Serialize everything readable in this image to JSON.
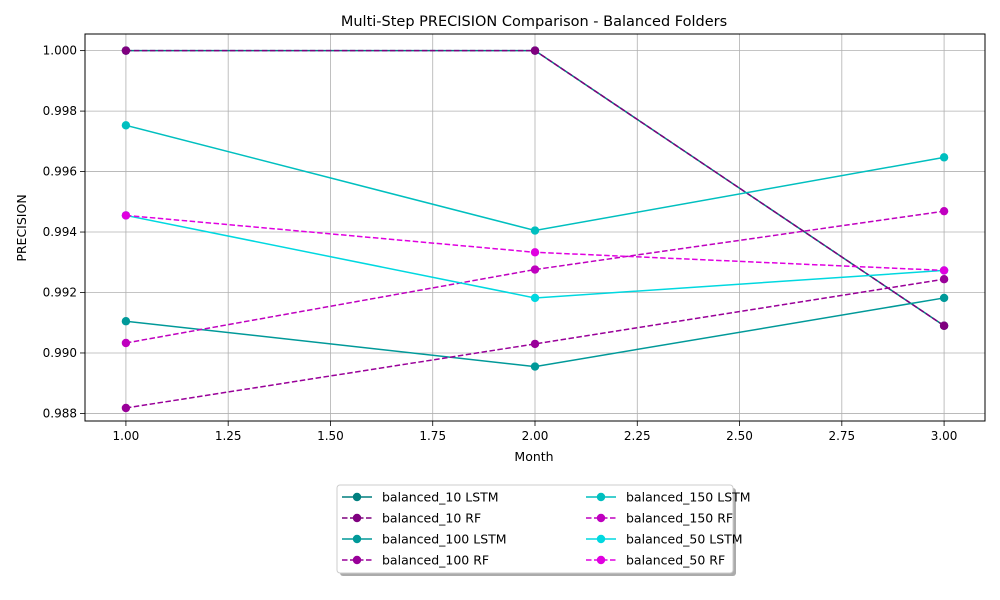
{
  "chart_data": {
    "type": "line",
    "title": "Multi-Step PRECISION Comparison - Balanced Folders",
    "xlabel": "Month",
    "ylabel": "PRECISION",
    "xlim": [
      0.9,
      3.1
    ],
    "ylim": [
      0.98775,
      1.00055
    ],
    "xticks": [
      1.0,
      1.25,
      1.5,
      1.75,
      2.0,
      2.25,
      2.5,
      2.75,
      3.0
    ],
    "xtick_labels": [
      "1.00",
      "1.25",
      "1.50",
      "1.75",
      "2.00",
      "2.25",
      "2.50",
      "2.75",
      "3.00"
    ],
    "yticks": [
      0.988,
      0.99,
      0.992,
      0.994,
      0.996,
      0.998,
      1.0
    ],
    "ytick_labels": [
      "0.988",
      "0.990",
      "0.992",
      "0.994",
      "0.996",
      "0.998",
      "1.000"
    ],
    "grid": true,
    "legend_placement": "bottom-center",
    "x": [
      1,
      2,
      3
    ],
    "series": [
      {
        "name": "balanced_10 LSTM",
        "values": [
          1.0,
          1.0,
          0.9909
        ],
        "color": "#007f7f",
        "style": "solid"
      },
      {
        "name": "balanced_10 RF",
        "values": [
          1.0,
          1.0,
          0.9909
        ],
        "color": "#7f007f",
        "style": "dashed"
      },
      {
        "name": "balanced_100 LSTM",
        "values": [
          0.99105,
          0.98955,
          0.99182
        ],
        "color": "#009999",
        "style": "solid"
      },
      {
        "name": "balanced_100 RF",
        "values": [
          0.98818,
          0.9903,
          0.99244
        ],
        "color": "#990099",
        "style": "dashed"
      },
      {
        "name": "balanced_150 LSTM",
        "values": [
          0.99753,
          0.99405,
          0.99647
        ],
        "color": "#00bfbf",
        "style": "solid"
      },
      {
        "name": "balanced_150 RF",
        "values": [
          0.99033,
          0.99276,
          0.99469
        ],
        "color": "#bf00bf",
        "style": "dashed"
      },
      {
        "name": "balanced_50 LSTM",
        "values": [
          0.99455,
          0.99182,
          0.99273
        ],
        "color": "#00d8e0",
        "style": "solid"
      },
      {
        "name": "balanced_50 RF",
        "values": [
          0.99455,
          0.99333,
          0.99273
        ],
        "color": "#e000e0",
        "style": "dashed"
      }
    ]
  }
}
